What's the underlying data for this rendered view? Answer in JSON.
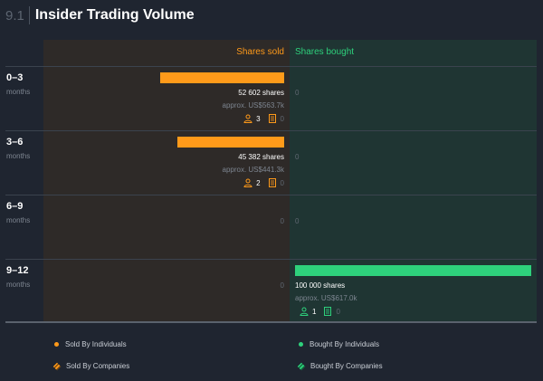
{
  "header": {
    "section_number": "9.1",
    "title": "Insider Trading Volume"
  },
  "columns": {
    "sold": "Shares sold",
    "bought": "Shares bought"
  },
  "colors": {
    "sold": "#ff9a1a",
    "bought": "#2ed17c",
    "background": "#1f2530"
  },
  "rows": [
    {
      "period": "0–3",
      "unit": "months",
      "sold": {
        "fraction": 0.526,
        "shares": "52 602 shares",
        "approx": "approx. US$563.7k",
        "individuals": "3",
        "companies": "0"
      },
      "bought": {
        "zero": "0"
      }
    },
    {
      "period": "3–6",
      "unit": "months",
      "sold": {
        "fraction": 0.454,
        "shares": "45 382 shares",
        "approx": "approx. US$441.3k",
        "individuals": "2",
        "companies": "0"
      },
      "bought": {
        "zero": "0"
      }
    },
    {
      "period": "6–9",
      "unit": "months",
      "sold": {
        "zero": "0"
      },
      "bought": {
        "zero": "0"
      }
    },
    {
      "period": "9–12",
      "unit": "months",
      "sold": {
        "zero": "0"
      },
      "bought": {
        "fraction": 1.0,
        "shares": "100 000 shares",
        "approx": "approx. US$617.0k",
        "individuals": "1",
        "companies": "0"
      }
    }
  ],
  "legend": {
    "sold_individuals": "Sold By Individuals",
    "sold_companies": "Sold By Companies",
    "bought_individuals": "Bought By Individuals",
    "bought_companies": "Bought By Companies"
  }
}
